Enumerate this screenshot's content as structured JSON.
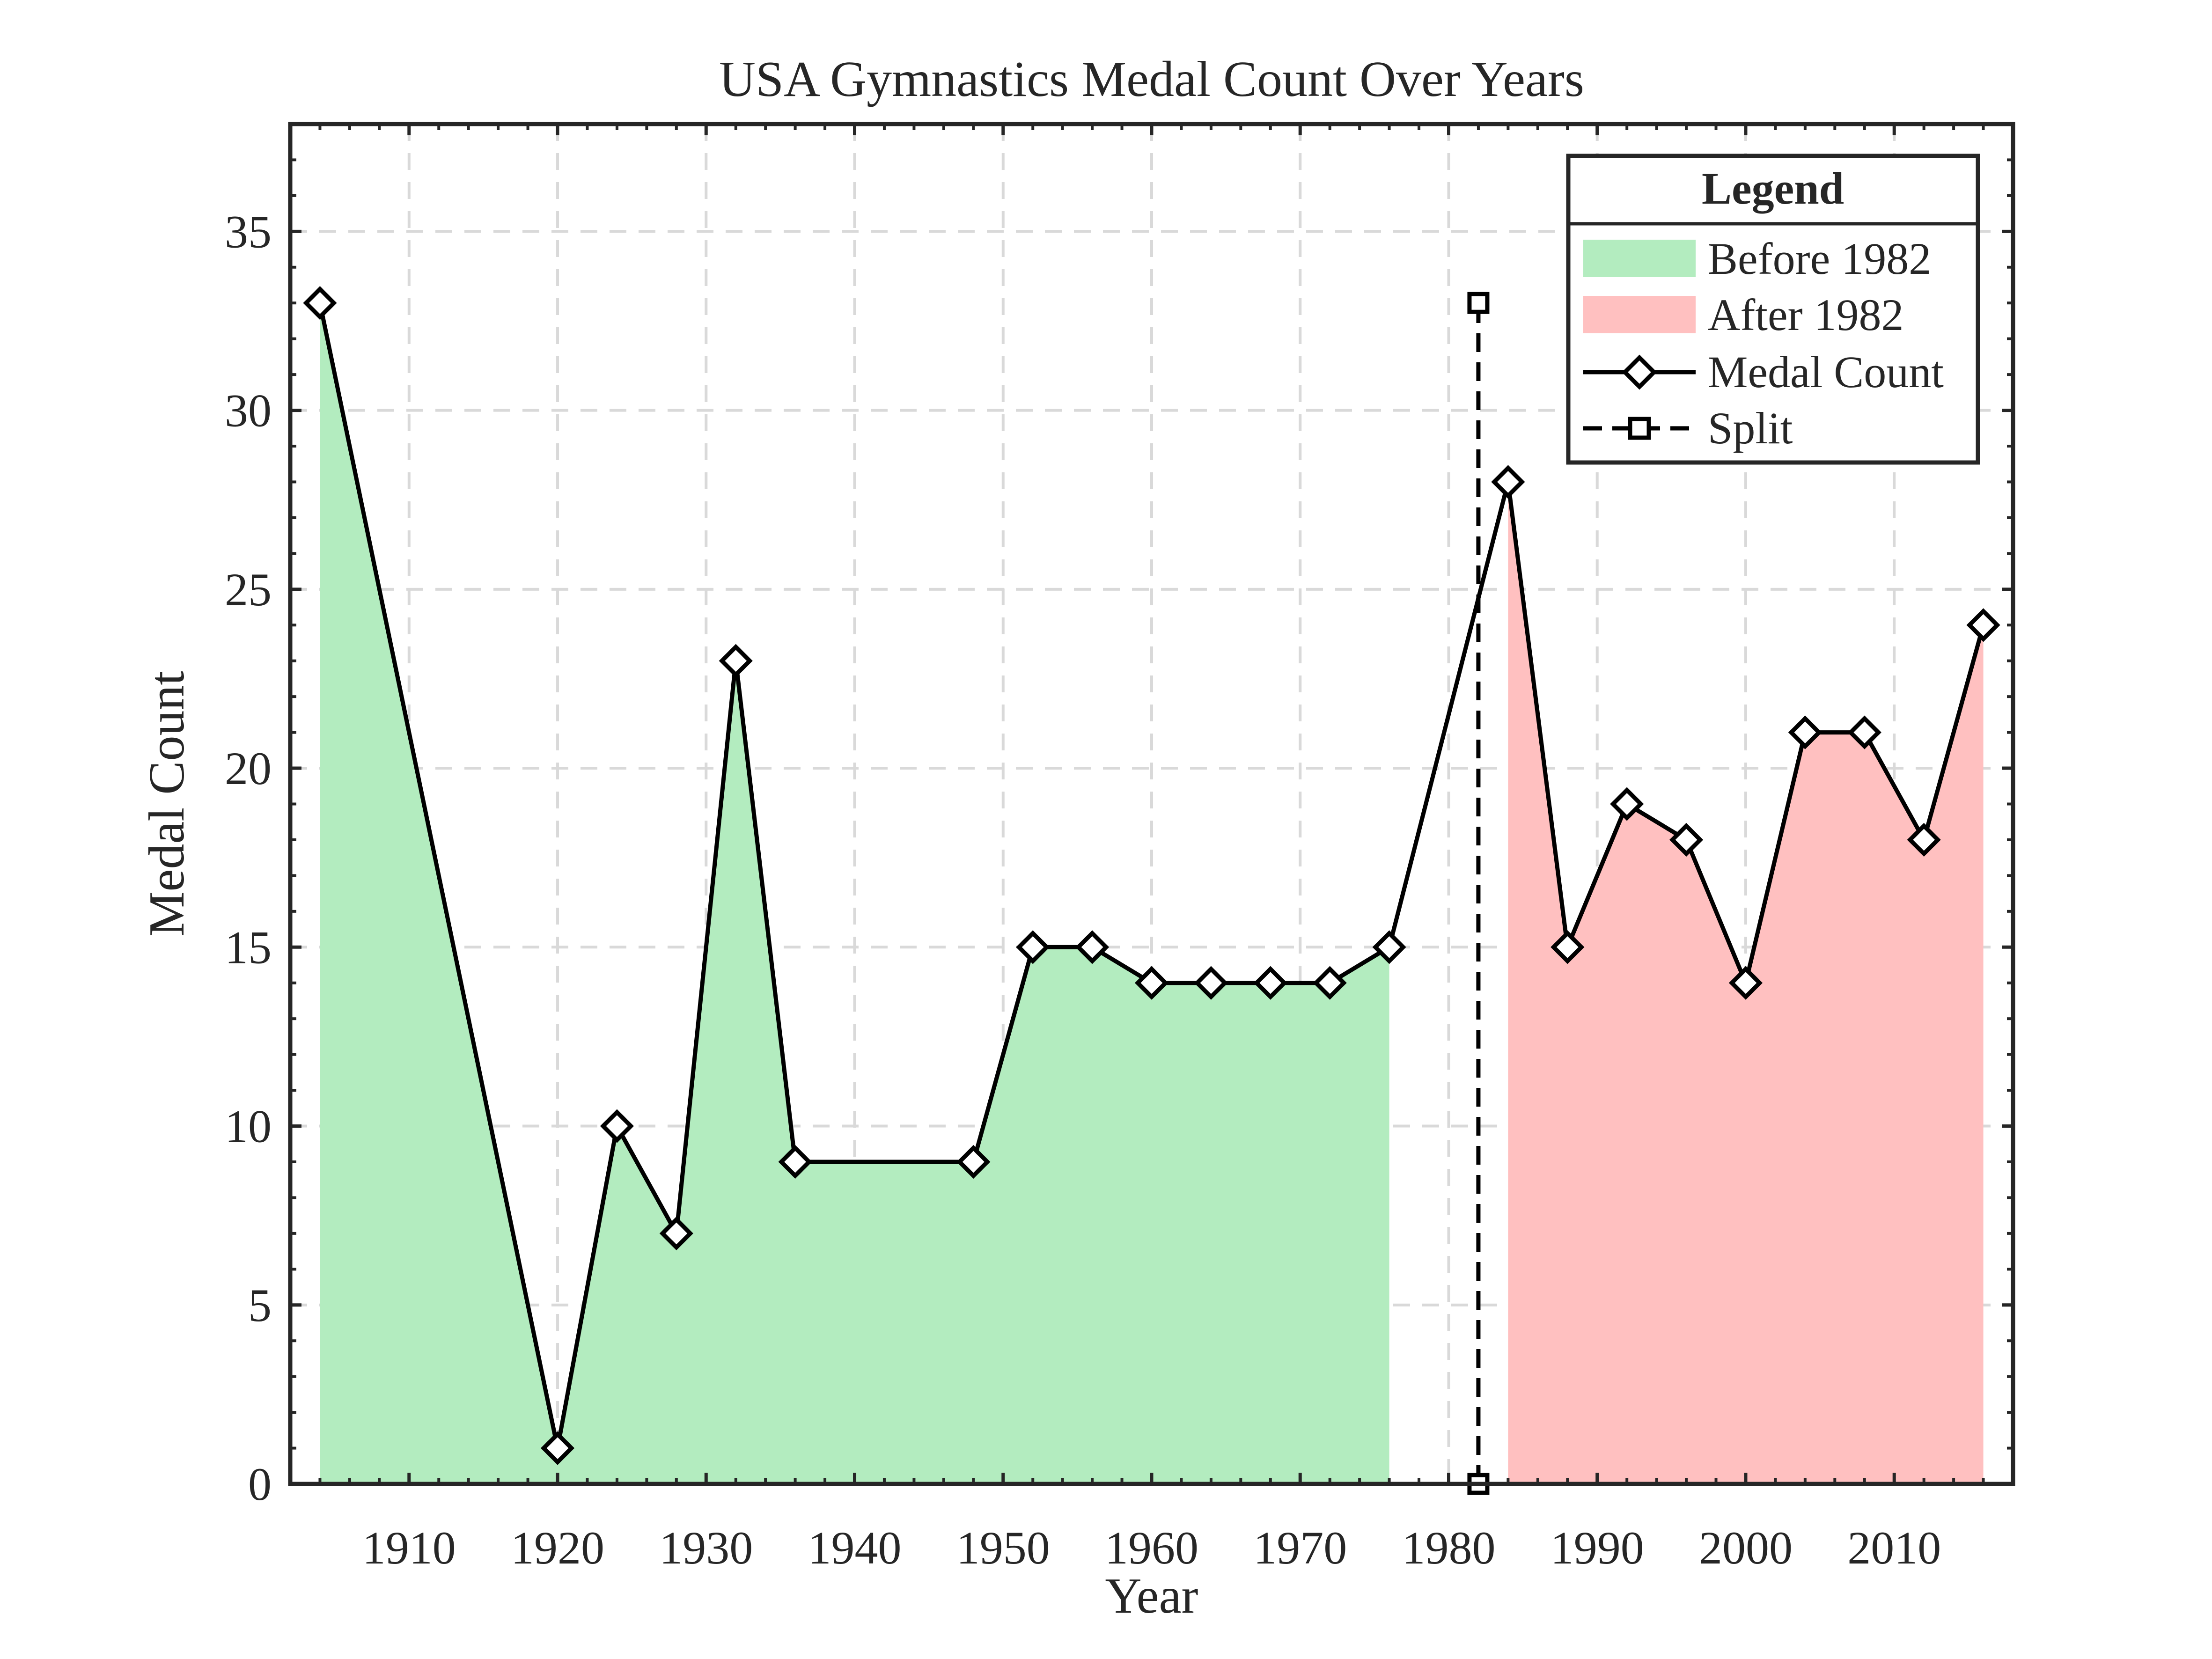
{
  "chart_data": {
    "type": "line",
    "title": "USA Gymnastics Medal Count Over Years",
    "xlabel": "Year",
    "ylabel": "Medal Count",
    "xlim": [
      1902,
      2018
    ],
    "ylim": [
      0,
      38
    ],
    "xticks": [
      1910,
      1920,
      1930,
      1940,
      1950,
      1960,
      1970,
      1980,
      1990,
      2000,
      2010
    ],
    "yticks": [
      0,
      5,
      10,
      15,
      20,
      25,
      30,
      35
    ],
    "grid": true,
    "legend_placement": "top-right",
    "series": [
      {
        "name": "Medal Count",
        "color": "#000000",
        "marker": "diamond",
        "x": [
          1904,
          1920,
          1924,
          1928,
          1932,
          1936,
          1948,
          1952,
          1956,
          1960,
          1964,
          1968,
          1972,
          1976,
          1984,
          1988,
          1992,
          1996,
          2000,
          2004,
          2008,
          2012,
          2016
        ],
        "y": [
          33,
          1,
          10,
          7,
          23,
          9,
          9,
          15,
          15,
          14,
          14,
          14,
          14,
          15,
          28,
          15,
          19,
          18,
          14,
          21,
          21,
          18,
          24
        ]
      }
    ],
    "areas": [
      {
        "name": "Before 1982",
        "color": "#b3ecbf",
        "x": [
          1904,
          1920,
          1924,
          1928,
          1932,
          1936,
          1948,
          1952,
          1956,
          1960,
          1964,
          1968,
          1972,
          1976
        ],
        "y": [
          33,
          1,
          10,
          7,
          23,
          9,
          9,
          15,
          15,
          14,
          14,
          14,
          14,
          15
        ]
      },
      {
        "name": "After 1982",
        "color": "#ffc0c0",
        "x": [
          1984,
          1988,
          1992,
          1996,
          2000,
          2004,
          2008,
          2012,
          2016
        ],
        "y": [
          28,
          15,
          19,
          18,
          14,
          21,
          21,
          18,
          24
        ]
      }
    ],
    "split_line": {
      "name": "Split",
      "x": 1982,
      "y": [
        0,
        33
      ],
      "marker": "square",
      "color": "#000000"
    },
    "legend": {
      "title": "Legend",
      "entries": [
        "Before 1982",
        "After 1982",
        "Medal Count",
        "Split"
      ]
    }
  }
}
